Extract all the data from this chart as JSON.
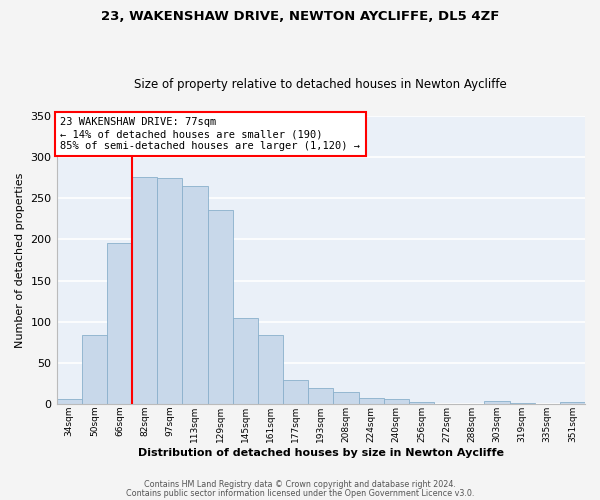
{
  "title": "23, WAKENSHAW DRIVE, NEWTON AYCLIFFE, DL5 4ZF",
  "subtitle": "Size of property relative to detached houses in Newton Aycliffe",
  "xlabel": "Distribution of detached houses by size in Newton Aycliffe",
  "ylabel": "Number of detached properties",
  "bar_color": "#c8d8ea",
  "bar_edge_color": "#8ab0cc",
  "background_color": "#eaf0f8",
  "grid_color": "#ffffff",
  "ylim": [
    0,
    350
  ],
  "yticks": [
    0,
    50,
    100,
    150,
    200,
    250,
    300,
    350
  ],
  "bin_labels": [
    "34sqm",
    "50sqm",
    "66sqm",
    "82sqm",
    "97sqm",
    "113sqm",
    "129sqm",
    "145sqm",
    "161sqm",
    "177sqm",
    "193sqm",
    "208sqm",
    "224sqm",
    "240sqm",
    "256sqm",
    "272sqm",
    "288sqm",
    "303sqm",
    "319sqm",
    "335sqm",
    "351sqm"
  ],
  "bar_heights": [
    6,
    84,
    196,
    276,
    275,
    265,
    236,
    105,
    84,
    29,
    20,
    15,
    8,
    6,
    3,
    0,
    0,
    4,
    1,
    0,
    3
  ],
  "marker_label": "23 WAKENSHAW DRIVE: 77sqm",
  "annotation_line1": "← 14% of detached houses are smaller (190)",
  "annotation_line2": "85% of semi-detached houses are larger (1,120) →",
  "red_line_x": 3,
  "footer_line1": "Contains HM Land Registry data © Crown copyright and database right 2024.",
  "footer_line2": "Contains public sector information licensed under the Open Government Licence v3.0."
}
